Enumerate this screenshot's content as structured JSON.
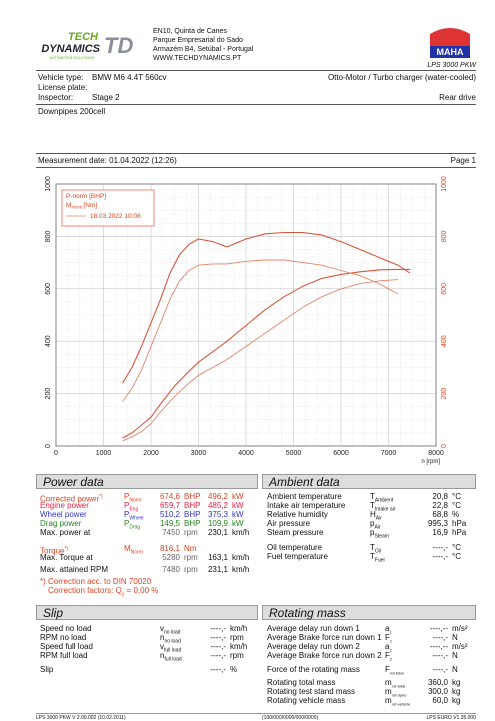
{
  "header": {
    "logo_line1": "TECH",
    "logo_line2": "DYNAMICS",
    "logo_td": "TD",
    "logo_sub": "AUTOMOTIVE SOLUTIONS",
    "address1": "EN10, Quinta de Canes",
    "address2": "Parque Empresarial do Sado",
    "address3": "Armazém B4, Setúbal - Portugal",
    "website": "WWW.TECHDYNAMICS.PT",
    "maha_label": "MAHA",
    "lps_model": "LPS 3000 PKW"
  },
  "vehicle": {
    "type_label": "Vehicle type:",
    "type_value": "BMW M6 4.4T 560cv",
    "engine_desc": "Otto-Motor / Turbo charger (water-cooled)",
    "plate_label": "License plate:",
    "inspector_label": "Inspector:",
    "inspector_value": "Stage 2",
    "drive": "Rear drive",
    "remark": "Downpipes 200cell"
  },
  "measurement": {
    "date_label": "Measurement date: 01.04.2022 (12:26)",
    "page": "Page 1"
  },
  "chart_data": {
    "type": "line",
    "legend": [
      "P-norm [BHP]",
      "M",
      "Norm",
      "[Nm]",
      "18.03.2022 10:08"
    ],
    "x_unit": "n [rpm]",
    "xlim": [
      0,
      8000
    ],
    "x_ticks": [
      "0",
      "1000",
      "2000",
      "3000",
      "4000",
      "5000",
      "6000",
      "7000",
      "8000"
    ],
    "y_left_ticks": [
      "0",
      "200",
      "400",
      "600",
      "800",
      "1000"
    ],
    "y_right_ticks": [
      "0",
      "200",
      "400",
      "600",
      "800",
      "1000"
    ],
    "ylim": [
      0,
      1000
    ],
    "series": [
      {
        "name": "P-norm [BHP]",
        "x": [
          1400,
          1600,
          1800,
          2000,
          2200,
          2500,
          2800,
          3000,
          3300,
          3600,
          4000,
          4400,
          4800,
          5200,
          5600,
          6000,
          6400,
          6800,
          7200,
          7450
        ],
        "values": [
          30,
          50,
          80,
          110,
          160,
          230,
          285,
          320,
          360,
          400,
          460,
          520,
          570,
          610,
          640,
          655,
          665,
          672,
          674,
          674
        ]
      },
      {
        "name": "M Norm [Nm]",
        "x": [
          1400,
          1600,
          1800,
          2000,
          2200,
          2400,
          2600,
          2800,
          3000,
          3300,
          3600,
          4000,
          4400,
          4800,
          5200,
          5600,
          6000,
          6400,
          6800,
          7200,
          7450
        ],
        "values": [
          240,
          300,
          380,
          470,
          560,
          660,
          730,
          770,
          790,
          780,
          760,
          790,
          810,
          815,
          815,
          805,
          780,
          750,
          720,
          690,
          660
        ]
      },
      {
        "name": "18.03.2022 10:08",
        "x": [
          1400,
          1600,
          1800,
          2000,
          2200,
          2500,
          2800,
          3000,
          3300,
          3600,
          4000,
          4400,
          4800,
          5200,
          5600,
          6000,
          6400,
          6800,
          7200
        ],
        "values": [
          20,
          35,
          55,
          85,
          130,
          190,
          240,
          270,
          300,
          330,
          380,
          430,
          480,
          530,
          570,
          600,
          620,
          630,
          635
        ]
      },
      {
        "name": "18.03.2022 10:08 torque",
        "x": [
          1400,
          1600,
          1800,
          2000,
          2200,
          2400,
          2600,
          2800,
          3000,
          3300,
          3600,
          4000,
          4400,
          4800,
          5200,
          5600,
          6000,
          6400,
          6800,
          7200
        ],
        "values": [
          170,
          220,
          290,
          380,
          470,
          560,
          630,
          670,
          690,
          695,
          695,
          705,
          710,
          710,
          700,
          690,
          670,
          650,
          620,
          580
        ]
      }
    ]
  },
  "power": {
    "title": "Power data",
    "rows": [
      {
        "label": "Corrected power",
        "sup": "*)",
        "sym": "P",
        "sub": "Norm",
        "v1": "674,6",
        "u1": "BHP",
        "v2": "496,2",
        "u2": "kW"
      },
      {
        "label": "Engine power",
        "sym": "P",
        "sub": "Eng",
        "v1": "659,7",
        "u1": "BHP",
        "v2": "485,2",
        "u2": "kW"
      },
      {
        "label": "Wheel power",
        "sym": "P",
        "sub": "Wheel",
        "v1": "510,2",
        "u1": "BHP",
        "v2": "375,3",
        "u2": "kW"
      },
      {
        "label": "Drag power",
        "sym": "P",
        "sub": "Drag",
        "v1": "149,5",
        "u1": "BHP",
        "v2": "109,9",
        "u2": "kW"
      },
      {
        "label": "Max. power at",
        "v1": "7450",
        "u1": "rpm",
        "v2": "230,1",
        "u2": "km/h"
      }
    ],
    "torque_label": "Torque",
    "torque_sup": "*)",
    "torque_sym": "M",
    "torque_sub": "Norm",
    "torque_v": "816,1",
    "torque_u": "Nm",
    "maxtorque_label": "Max. Torque at",
    "maxtorque_v1": "5280",
    "maxtorque_u1": "rpm",
    "maxtorque_v2": "163,1",
    "maxtorque_u2": "km/h",
    "maxrpm_label": "Max. attained RPM",
    "maxrpm_v1": "7480",
    "maxrpm_u1": "rpm",
    "maxrpm_v2": "231,1",
    "maxrpm_u2": "km/h",
    "note1": "*) Correction acc. to DIN 70020",
    "note2": "Correction factors: Q",
    "note2_sub": "y",
    "note2_val": "=    0,00 %"
  },
  "ambient": {
    "title": "Ambient data",
    "rows": [
      {
        "label": "Ambient temperature",
        "sym": "T",
        "sub": "Ambient",
        "v": "20,8",
        "u": "°C"
      },
      {
        "label": "Intake air temperature",
        "sym": "T",
        "sub": "Intake air",
        "v": "22,8",
        "u": "°C"
      },
      {
        "label": "Relative humidity",
        "sym": "H",
        "sub": "Air",
        "v": "68,8",
        "u": "%"
      },
      {
        "label": "Air pressure",
        "sym": "p",
        "sub": "Air",
        "v": "995,3",
        "u": "hPa"
      },
      {
        "label": "Steam pressure",
        "sym": "p",
        "sub": "Steam",
        "v": "16,9",
        "u": "hPa"
      },
      {
        "label": "Oil temperature",
        "sym": "T",
        "sub": "Oil",
        "v": "----,-",
        "u": "°C"
      },
      {
        "label": "Fuel temperature",
        "sym": "T",
        "sub": "Fuel",
        "v": "----,-",
        "u": "°C"
      }
    ]
  },
  "slip": {
    "title": "Slip",
    "rows": [
      {
        "label": "Speed no load",
        "sym": "v",
        "sub": "no load",
        "v": "----,-",
        "u": "km/h"
      },
      {
        "label": "RPM no load",
        "sym": "n",
        "sub": "no load",
        "v": "----,-",
        "u": "rpm"
      },
      {
        "label": "Speed full load",
        "sym": "v",
        "sub": "full load",
        "v": "----,-",
        "u": "km/h"
      },
      {
        "label": "RPM full load",
        "sym": "n",
        "sub": "full load",
        "v": "----,-",
        "u": "rpm"
      },
      {
        "label": "Slip",
        "sym": "",
        "sub": "",
        "v": "----,-",
        "u": "%"
      }
    ]
  },
  "rotating": {
    "title": "Rotating mass",
    "rows": [
      {
        "label": "Average delay run down 1",
        "sym": "a",
        "sub": "1",
        "v": "----,--",
        "u": "m/s²"
      },
      {
        "label": "Average Brake force run down 1",
        "sym": "F",
        "sub": "1",
        "v": "----,-",
        "u": "N"
      },
      {
        "label": "Average delay run down 2",
        "sym": "a",
        "sub": "2",
        "v": "----,--",
        "u": "m/s²"
      },
      {
        "label": "Average Brake force run down 2",
        "sym": "F",
        "sub": "2",
        "v": "----,-",
        "u": "N"
      },
      {
        "label": "Force of the rotating mass",
        "sym": "F",
        "sub": "rot-total",
        "v": "----,-",
        "u": "N"
      },
      {
        "label": "Rotating total mass",
        "sym": "m",
        "sub": "rot-total",
        "v": "360,0",
        "u": "kg"
      },
      {
        "label": "Rotating test stand mass",
        "sym": "m",
        "sub": "rot-dyno",
        "v": "300,0",
        "u": "kg"
      },
      {
        "label": "Rotating vehicle mass",
        "sym": "m",
        "sub": "rot-vehicle",
        "v": "60,0",
        "u": "kg"
      }
    ]
  },
  "footer": {
    "left": "LPS 3000 PKW V 2.00.002 (10.02.2011)",
    "mid": "(100/000/0000/000/0000)",
    "right": "LPS EURO V1.35.000"
  },
  "colors": {
    "curve_red": "#d9563a",
    "curve_ora": "#e0775a",
    "grid": "#bbbbbb",
    "legend_red": "#d42"
  }
}
